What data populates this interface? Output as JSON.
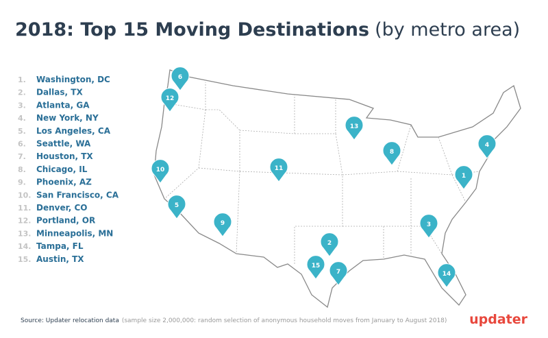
{
  "header": {
    "title": "2018: Top 15 Moving Destinations",
    "subtitle": "(by metro area)"
  },
  "destinations": [
    {
      "rank": "1.",
      "name": "Washington, DC",
      "pin": "1"
    },
    {
      "rank": "2.",
      "name": "Dallas, TX",
      "pin": "2"
    },
    {
      "rank": "3.",
      "name": "Atlanta, GA",
      "pin": "3"
    },
    {
      "rank": "4.",
      "name": "New York, NY",
      "pin": "4"
    },
    {
      "rank": "5.",
      "name": "Los Angeles, CA",
      "pin": "5"
    },
    {
      "rank": "6.",
      "name": "Seattle, WA",
      "pin": "6"
    },
    {
      "rank": "7.",
      "name": "Houston, TX",
      "pin": "7"
    },
    {
      "rank": "8.",
      "name": "Chicago, IL",
      "pin": "8"
    },
    {
      "rank": "9.",
      "name": "Phoenix, AZ",
      "pin": "9"
    },
    {
      "rank": "10.",
      "name": "San Francisco, CA",
      "pin": "10"
    },
    {
      "rank": "11.",
      "name": "Denver, CO",
      "pin": "11"
    },
    {
      "rank": "12.",
      "name": "Portland, OR",
      "pin": "12"
    },
    {
      "rank": "13.",
      "name": "Minneapolis, MN",
      "pin": "13"
    },
    {
      "rank": "14.",
      "name": "Tampa, FL",
      "pin": "14"
    },
    {
      "rank": "15.",
      "name": "Austin, TX",
      "pin": "15"
    }
  ],
  "footer": {
    "source": "Source: Updater relocation data",
    "note": "(sample size 2,000,000: random selection of anonymous household moves from January to August 2018)",
    "logo": "updater"
  }
}
